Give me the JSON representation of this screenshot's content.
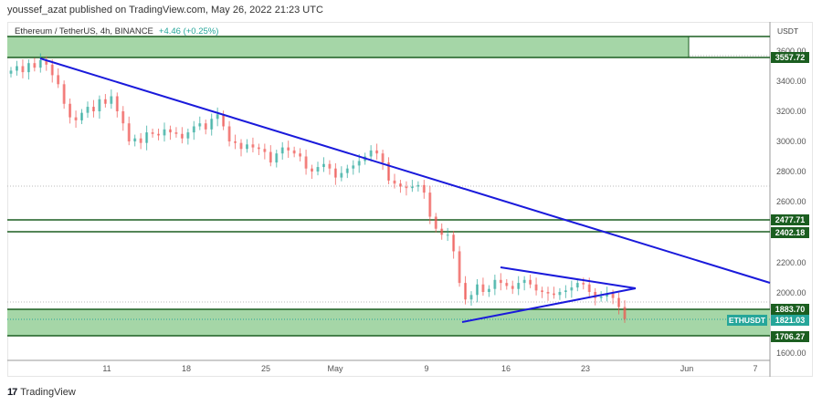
{
  "header": {
    "published": "youssef_azat published on TradingView.com, May 26, 2022 21:23 UTC"
  },
  "legend": {
    "symbol": "Ethereum / TetherUS, 4h, BINANCE",
    "change": "+4.46 (+0.25%)"
  },
  "price_axis": {
    "currency": "USDT",
    "ticks": [
      "3600.00",
      "3400.00",
      "3200.00",
      "3000.00",
      "2800.00",
      "2600.00",
      "2200.00",
      "2000.00",
      "1600.00"
    ],
    "tags": {
      "top_zone": "3557.72",
      "resistance_upper": "2477.71",
      "resistance_lower": "2402.18",
      "support_upper": "1883.70",
      "current": "1821.03",
      "support_lower": "1706.27"
    },
    "symbol_tag": "ETHUSDT"
  },
  "time_axis": {
    "ticks": [
      "11",
      "18",
      "25",
      "May",
      "9",
      "16",
      "23",
      "Jun",
      "7"
    ]
  },
  "footer": {
    "brand": "TradingView",
    "logo_glyph": "17"
  },
  "colors": {
    "up": "#26a69a",
    "down": "#ef5350",
    "zone_fill": "#a5d6a7",
    "zone_border": "#1b5e20",
    "trendline": "#1a1adb"
  },
  "chart_data": {
    "type": "candlestick",
    "title": "Ethereum / TetherUS, 4h, BINANCE",
    "ylabel": "USDT",
    "ylim": [
      1560,
      3680
    ],
    "x_ticks": [
      "11",
      "18",
      "25",
      "May",
      "9",
      "16",
      "23",
      "Jun",
      "7"
    ],
    "last_price": 1821.03,
    "change": "+4.46 (+0.25%)",
    "horizontal_levels": [
      3557.72,
      2477.71,
      2402.18,
      1883.7,
      1706.27
    ],
    "zones": [
      {
        "name": "top_supply_zone",
        "from": 3557.72,
        "to": 3680
      },
      {
        "name": "demand_zone",
        "from": 1706.27,
        "to": 1883.7
      }
    ],
    "trendlines": [
      {
        "name": "descending_resistance",
        "from": {
          "date": "Apr 5",
          "price": 3550
        },
        "to": {
          "date": "Jun 8",
          "price": 2070
        }
      },
      {
        "name": "triangle_upper",
        "from": {
          "date": "May 15",
          "price": 2160
        },
        "to": {
          "date": "May 27",
          "price": 2030
        }
      },
      {
        "name": "triangle_lower",
        "from": {
          "date": "May 12",
          "price": 1795
        },
        "to": {
          "date": "May 27",
          "price": 2030
        }
      }
    ],
    "closes": [
      3470,
      3500,
      3460,
      3520,
      3490,
      3540,
      3510,
      3440,
      3380,
      3250,
      3160,
      3140,
      3190,
      3230,
      3200,
      3280,
      3250,
      3300,
      3200,
      3120,
      3000,
      3020,
      2990,
      3060,
      3050,
      3040,
      3080,
      3060,
      3050,
      3020,
      3060,
      3100,
      3120,
      3080,
      3150,
      3180,
      3100,
      3000,
      2990,
      2950,
      2980,
      2960,
      2950,
      2930,
      2860,
      2920,
      2960,
      2940,
      2920,
      2900,
      2820,
      2800,
      2830,
      2850,
      2820,
      2760,
      2790,
      2820,
      2840,
      2870,
      2900,
      2940,
      2920,
      2860,
      2740,
      2720,
      2700,
      2690,
      2700,
      2710,
      2660,
      2500,
      2420,
      2380,
      2380,
      2270,
      2060,
      1950,
      1980,
      2050,
      2000,
      2020,
      2080,
      2060,
      2040,
      2020,
      2060,
      2080,
      2050,
      2010,
      2000,
      1990,
      1980,
      2000,
      2010,
      2030,
      2060,
      2050,
      2000,
      1960,
      1970,
      1990,
      1960,
      1900,
      1820
    ]
  }
}
